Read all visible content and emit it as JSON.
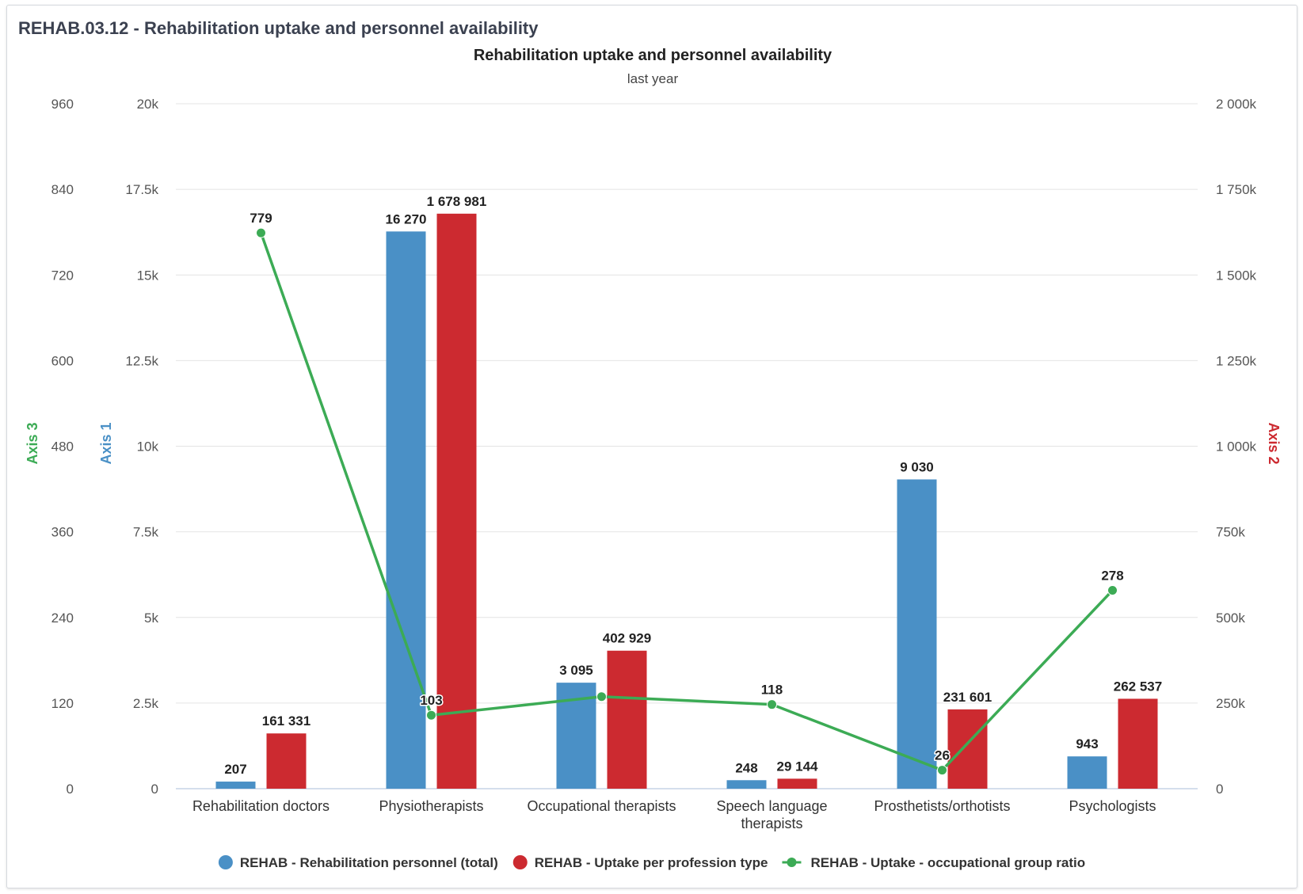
{
  "panel": {
    "title": "REHAB.03.12 - Rehabilitation uptake and personnel availability"
  },
  "chart_data": {
    "type": "bar",
    "title": "Rehabilitation uptake and personnel availability",
    "subtitle": "last year",
    "categories": [
      [
        "Rehabilitation doctors"
      ],
      [
        "Physiotherapists"
      ],
      [
        "Occupational therapists"
      ],
      [
        "Speech language",
        "therapists"
      ],
      [
        "Prosthetists/orthotists"
      ],
      [
        "Psychologists"
      ]
    ],
    "axes": {
      "axis1": {
        "title": "Axis 1",
        "color": "#4a90c6",
        "ylim": [
          0,
          20000
        ],
        "ticks": [
          "0",
          "2.5k",
          "5k",
          "7.5k",
          "10k",
          "12.5k",
          "15k",
          "17.5k",
          "20k"
        ]
      },
      "axis2": {
        "title": "Axis 2",
        "color": "#cc2a30",
        "ylim": [
          0,
          2000000
        ],
        "ticks": [
          "0",
          "250k",
          "500k",
          "750k",
          "1 000k",
          "1 250k",
          "1 500k",
          "1 750k",
          "2 000k"
        ]
      },
      "axis3": {
        "title": "Axis 3",
        "color": "#3cab55",
        "ylim": [
          0,
          960
        ],
        "ticks": [
          "0",
          "120",
          "240",
          "360",
          "480",
          "600",
          "720",
          "840",
          "960"
        ]
      }
    },
    "grid": true,
    "legend_position": "bottom",
    "series": [
      {
        "name": "REHAB - Rehabilitation personnel (total)",
        "type": "bar",
        "axis": "axis1",
        "color": "#4a90c6",
        "values": [
          207,
          16270,
          3095,
          248,
          9030,
          943
        ],
        "labels": [
          "207",
          "16 270",
          "3 095",
          "248",
          "9 030",
          "943"
        ]
      },
      {
        "name": "REHAB - Uptake per profession type",
        "type": "bar",
        "axis": "axis2",
        "color": "#cc2a30",
        "values": [
          161331,
          1678981,
          402929,
          29144,
          231601,
          262537
        ],
        "labels": [
          "161 331",
          "1 678 981",
          "402 929",
          "29 144",
          "231 601",
          "262 537"
        ]
      },
      {
        "name": "REHAB - Uptake - occupational group ratio",
        "type": "line",
        "axis": "axis3",
        "color": "#3cab55",
        "values": [
          779,
          103,
          129,
          118,
          26,
          278
        ],
        "labels": [
          "779",
          "103",
          "",
          "118",
          "26",
          "278"
        ]
      }
    ]
  }
}
